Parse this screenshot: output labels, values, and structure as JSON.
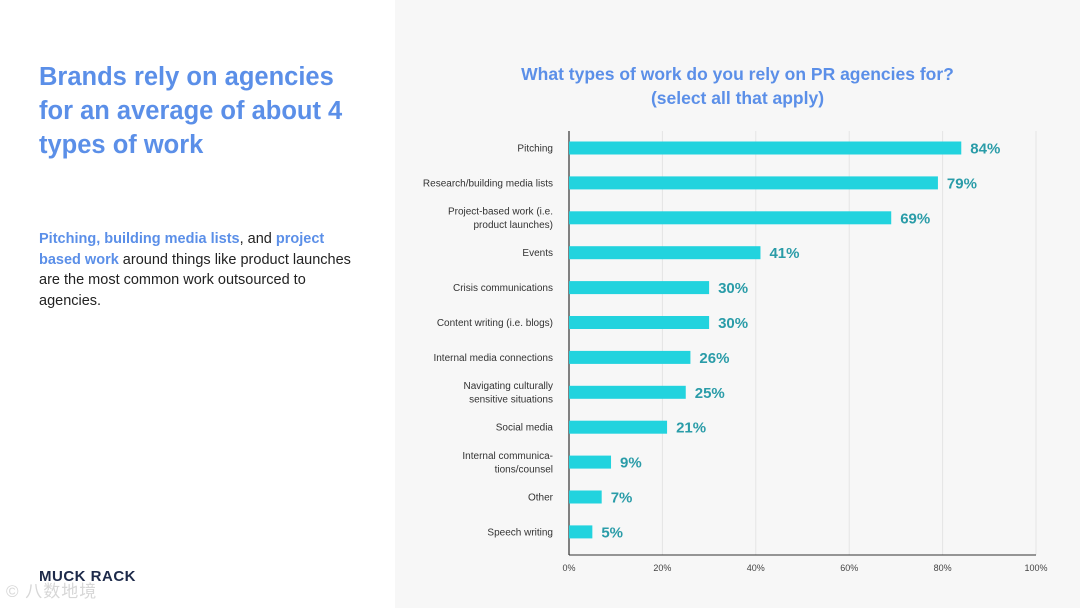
{
  "headline": "Brands rely on agencies for an average of about 4 types of work",
  "subtext": {
    "hl1": "Pitching, building media lists",
    "t1": ", and ",
    "hl2": "project based work",
    "t2": " around things like product launches are the most common work outsourced to agencies."
  },
  "logo": "MUCK RACK",
  "watermark": "© 八数地境",
  "colors": {
    "accent": "#5b8fe8",
    "bar": "#22d3de",
    "value_label": "#2a9ca8"
  },
  "chart_data": {
    "type": "bar",
    "orientation": "horizontal",
    "title_line1": "What types of work do you rely on PR agencies for?",
    "title_line2": "(select all that apply)",
    "categories": [
      [
        "Pitching"
      ],
      [
        "Research/building media lists"
      ],
      [
        "Project-based work (i.e.",
        "product launches)"
      ],
      [
        "Events"
      ],
      [
        "Crisis communications"
      ],
      [
        "Content writing (i.e. blogs)"
      ],
      [
        "Internal media connections"
      ],
      [
        "Navigating culturally",
        "sensitive situations"
      ],
      [
        "Social media"
      ],
      [
        "Internal communica-",
        "tions/counsel"
      ],
      [
        "Other"
      ],
      [
        "Speech writing"
      ]
    ],
    "values": [
      84,
      79,
      69,
      41,
      30,
      30,
      26,
      25,
      21,
      9,
      7,
      5
    ],
    "value_labels": [
      "84%",
      "79%",
      "69%",
      "41%",
      "30%",
      "30%",
      "26%",
      "25%",
      "21%",
      "9%",
      "7%",
      "5%"
    ],
    "xlim": [
      0,
      100
    ],
    "xticks": [
      0,
      20,
      40,
      60,
      80,
      100
    ],
    "xtick_labels": [
      "0%",
      "20%",
      "40%",
      "60%",
      "80%",
      "100%"
    ],
    "grid": true
  }
}
